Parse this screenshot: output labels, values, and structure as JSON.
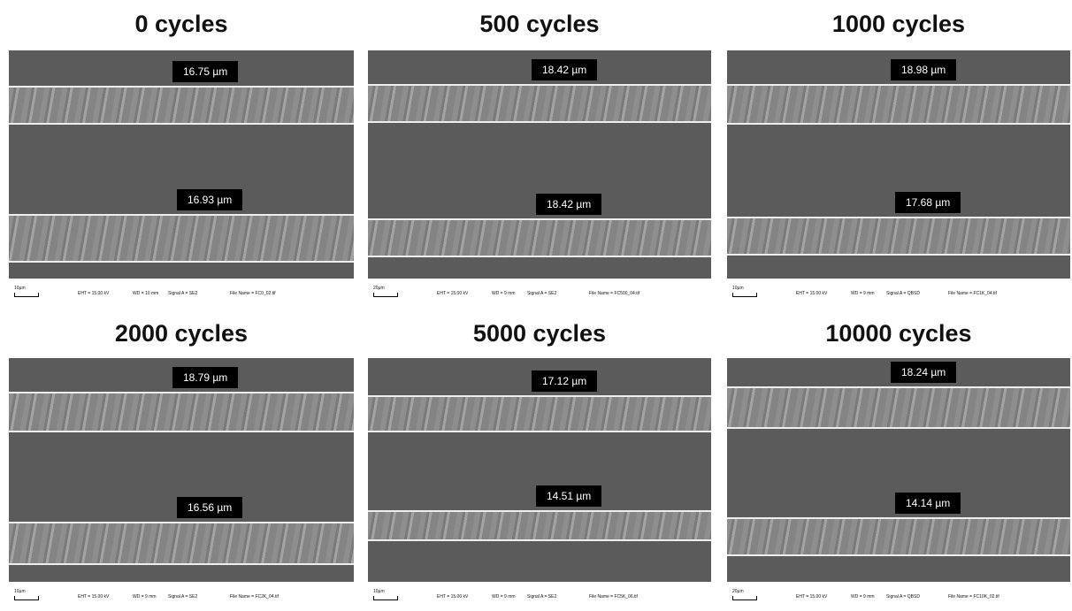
{
  "panels": [
    {
      "title": "0 cycles",
      "top_label": "16.75 µm",
      "bottom_label": "16.93 µm",
      "scale": "10µm",
      "eht": "EHT = 15.00 kV",
      "wd": "WD = 10 mm",
      "signal": "Signal A = SE2",
      "file": "File Name = FC0_02.tif"
    },
    {
      "title": "500 cycles",
      "top_label": "18.42 µm",
      "bottom_label": "18.42 µm",
      "scale": "20µm",
      "eht": "EHT = 15.00 kV",
      "wd": "WD = 9 mm",
      "signal": "Signal A = SE2",
      "file": "File Name = FC500_04.tif"
    },
    {
      "title": "1000 cycles",
      "top_label": "18.98 µm",
      "bottom_label": "17.68 µm",
      "scale": "10µm",
      "eht": "EHT = 15.00 kV",
      "wd": "WD = 9 mm",
      "signal": "Signal A = QBSD",
      "file": "File Name = FC1K_04.tif"
    },
    {
      "title": "2000 cycles",
      "top_label": "18.79 µm",
      "bottom_label": "16.56 µm",
      "scale": "10µm",
      "eht": "EHT = 15.00 kV",
      "wd": "WD = 9 mm",
      "signal": "Signal A = SE2",
      "file": "File Name = FC2K_04.tif"
    },
    {
      "title": "5000 cycles",
      "top_label": "17.12 µm",
      "bottom_label": "14.51 µm",
      "scale": "10µm",
      "eht": "EHT = 15.00 kV",
      "wd": "WD = 9 mm",
      "signal": "Signal A = SE2",
      "file": "File Name = FC5K_06.tif"
    },
    {
      "title": "10000 cycles",
      "top_label": "18.24 µm",
      "bottom_label": "14.14 µm",
      "scale": "20µm",
      "eht": "EHT = 15.00 kV",
      "wd": "WD = 9 mm",
      "signal": "Signal A = QBSD",
      "file": "File Name = FC10K_02.tif"
    }
  ]
}
